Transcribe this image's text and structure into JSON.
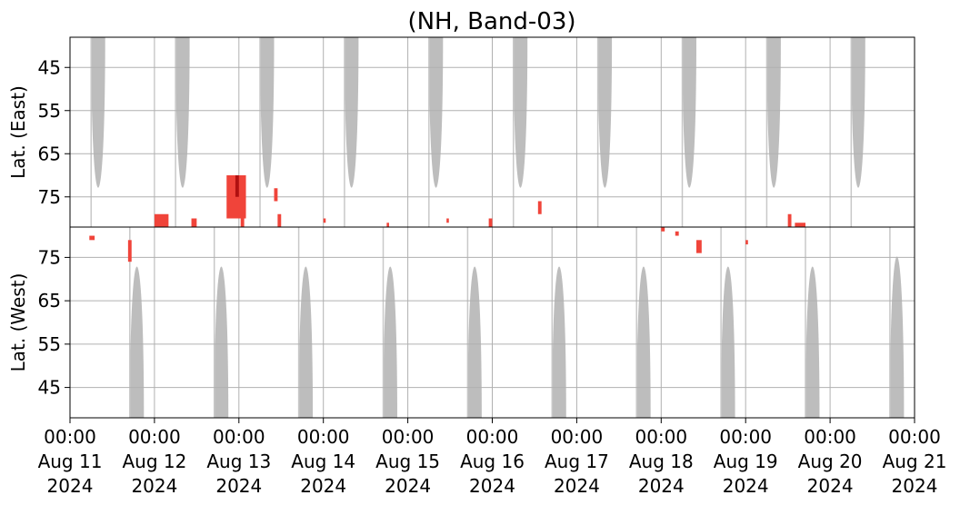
{
  "chart_data": {
    "type": "heatmap",
    "title": "(NH, Band-03)",
    "xlim": [
      "2024-08-11T00:00",
      "2024-08-21T00:00"
    ],
    "x_ticks": [
      {
        "time": "00:00",
        "day": "Aug 11",
        "year": "2024"
      },
      {
        "time": "00:00",
        "day": "Aug 12",
        "year": "2024"
      },
      {
        "time": "00:00",
        "day": "Aug 13",
        "year": "2024"
      },
      {
        "time": "00:00",
        "day": "Aug 14",
        "year": "2024"
      },
      {
        "time": "00:00",
        "day": "Aug 15",
        "year": "2024"
      },
      {
        "time": "00:00",
        "day": "Aug 16",
        "year": "2024"
      },
      {
        "time": "00:00",
        "day": "Aug 17",
        "year": "2024"
      },
      {
        "time": "00:00",
        "day": "Aug 18",
        "year": "2024"
      },
      {
        "time": "00:00",
        "day": "Aug 19",
        "year": "2024"
      },
      {
        "time": "00:00",
        "day": "Aug 20",
        "year": "2024"
      },
      {
        "time": "00:00",
        "day": "Aug 21",
        "year": "2024"
      }
    ],
    "grid": true,
    "colors": {
      "daylight": "#bdbdbd",
      "event": "#f0443a",
      "event_strong": "#b01010"
    },
    "panels": [
      {
        "name": "east",
        "ylabel": "Lat. (East)",
        "ylim": [
          38,
          82
        ],
        "yticks": [
          "45",
          "55",
          "65",
          "75"
        ],
        "ytick_values": [
          45,
          55,
          65,
          75
        ],
        "inverted": false,
        "daylight_bands": [
          {
            "start": "2024-08-11T06:00",
            "end": "2024-08-11T10:00",
            "min_lat": 68
          },
          {
            "start": "2024-08-12T06:00",
            "end": "2024-08-12T10:00",
            "min_lat": 68
          },
          {
            "start": "2024-08-13T06:00",
            "end": "2024-08-13T10:00",
            "min_lat": 68
          },
          {
            "start": "2024-08-14T06:00",
            "end": "2024-08-14T10:00",
            "min_lat": 68
          },
          {
            "start": "2024-08-15T06:00",
            "end": "2024-08-15T10:00",
            "min_lat": 68
          },
          {
            "start": "2024-08-16T06:00",
            "end": "2024-08-16T10:00",
            "min_lat": 68
          },
          {
            "start": "2024-08-17T06:00",
            "end": "2024-08-17T10:00",
            "min_lat": 68
          },
          {
            "start": "2024-08-18T06:00",
            "end": "2024-08-18T10:00",
            "min_lat": 68
          },
          {
            "start": "2024-08-19T06:00",
            "end": "2024-08-19T10:00",
            "min_lat": 68
          },
          {
            "start": "2024-08-20T06:00",
            "end": "2024-08-20T10:00",
            "min_lat": 68
          }
        ],
        "events": [
          {
            "start": "2024-08-12T00:00",
            "end": "2024-08-12T04:00",
            "lat_min": 79,
            "lat_max": 82,
            "strong": false
          },
          {
            "start": "2024-08-12T10:30",
            "end": "2024-08-12T12:00",
            "lat_min": 80,
            "lat_max": 82,
            "strong": false
          },
          {
            "start": "2024-08-12T20:30",
            "end": "2024-08-13T02:00",
            "lat_min": 70,
            "lat_max": 80,
            "strong": false
          },
          {
            "start": "2024-08-12T23:00",
            "end": "2024-08-13T00:00",
            "lat_min": 70,
            "lat_max": 75,
            "strong": true
          },
          {
            "start": "2024-08-13T00:30",
            "end": "2024-08-13T01:30",
            "lat_min": 80,
            "lat_max": 82,
            "strong": false
          },
          {
            "start": "2024-08-13T10:00",
            "end": "2024-08-13T11:00",
            "lat_min": 73,
            "lat_max": 76,
            "strong": false
          },
          {
            "start": "2024-08-13T11:00",
            "end": "2024-08-13T12:00",
            "lat_min": 79,
            "lat_max": 82,
            "strong": false
          },
          {
            "start": "2024-08-14T00:00",
            "end": "2024-08-14T00:40",
            "lat_min": 80,
            "lat_max": 81,
            "strong": false
          },
          {
            "start": "2024-08-14T18:00",
            "end": "2024-08-14T18:40",
            "lat_min": 81,
            "lat_max": 82,
            "strong": false
          },
          {
            "start": "2024-08-15T11:00",
            "end": "2024-08-15T11:40",
            "lat_min": 80,
            "lat_max": 81,
            "strong": false
          },
          {
            "start": "2024-08-15T23:00",
            "end": "2024-08-16T00:00",
            "lat_min": 80,
            "lat_max": 82,
            "strong": false
          },
          {
            "start": "2024-08-16T13:00",
            "end": "2024-08-16T14:00",
            "lat_min": 76,
            "lat_max": 79,
            "strong": false
          },
          {
            "start": "2024-08-19T12:00",
            "end": "2024-08-19T13:00",
            "lat_min": 79,
            "lat_max": 82,
            "strong": false
          },
          {
            "start": "2024-08-19T14:00",
            "end": "2024-08-19T17:00",
            "lat_min": 81,
            "lat_max": 82,
            "strong": false
          }
        ]
      },
      {
        "name": "west",
        "ylabel": "Lat. (West)",
        "ylim": [
          38,
          82
        ],
        "yticks": [
          "75",
          "65",
          "55",
          "45"
        ],
        "ytick_values": [
          75,
          65,
          55,
          45
        ],
        "inverted": true,
        "daylight_bands": [
          {
            "start": "2024-08-11T17:00",
            "end": "2024-08-11T21:00",
            "min_lat": 68
          },
          {
            "start": "2024-08-12T17:00",
            "end": "2024-08-12T21:00",
            "min_lat": 68
          },
          {
            "start": "2024-08-13T17:00",
            "end": "2024-08-13T21:00",
            "min_lat": 68
          },
          {
            "start": "2024-08-14T17:00",
            "end": "2024-08-14T21:00",
            "min_lat": 68
          },
          {
            "start": "2024-08-15T17:00",
            "end": "2024-08-15T21:00",
            "min_lat": 68
          },
          {
            "start": "2024-08-16T17:00",
            "end": "2024-08-16T21:00",
            "min_lat": 68
          },
          {
            "start": "2024-08-17T17:00",
            "end": "2024-08-17T21:00",
            "min_lat": 68
          },
          {
            "start": "2024-08-18T17:00",
            "end": "2024-08-18T21:00",
            "min_lat": 68
          },
          {
            "start": "2024-08-19T17:00",
            "end": "2024-08-19T21:00",
            "min_lat": 68
          },
          {
            "start": "2024-08-20T17:00",
            "end": "2024-08-20T21:00",
            "min_lat": 70
          }
        ],
        "events": [
          {
            "start": "2024-08-11T05:30",
            "end": "2024-08-11T07:00",
            "lat_min": 79,
            "lat_max": 80,
            "strong": false
          },
          {
            "start": "2024-08-11T16:30",
            "end": "2024-08-11T17:30",
            "lat_min": 74,
            "lat_max": 79,
            "strong": false
          },
          {
            "start": "2024-08-18T00:00",
            "end": "2024-08-18T01:00",
            "lat_min": 81,
            "lat_max": 82,
            "strong": false
          },
          {
            "start": "2024-08-18T04:00",
            "end": "2024-08-18T05:00",
            "lat_min": 80,
            "lat_max": 81,
            "strong": false
          },
          {
            "start": "2024-08-18T10:00",
            "end": "2024-08-18T11:30",
            "lat_min": 76,
            "lat_max": 79,
            "strong": false
          },
          {
            "start": "2024-08-19T00:00",
            "end": "2024-08-19T00:40",
            "lat_min": 78,
            "lat_max": 79,
            "strong": false
          }
        ]
      }
    ]
  }
}
